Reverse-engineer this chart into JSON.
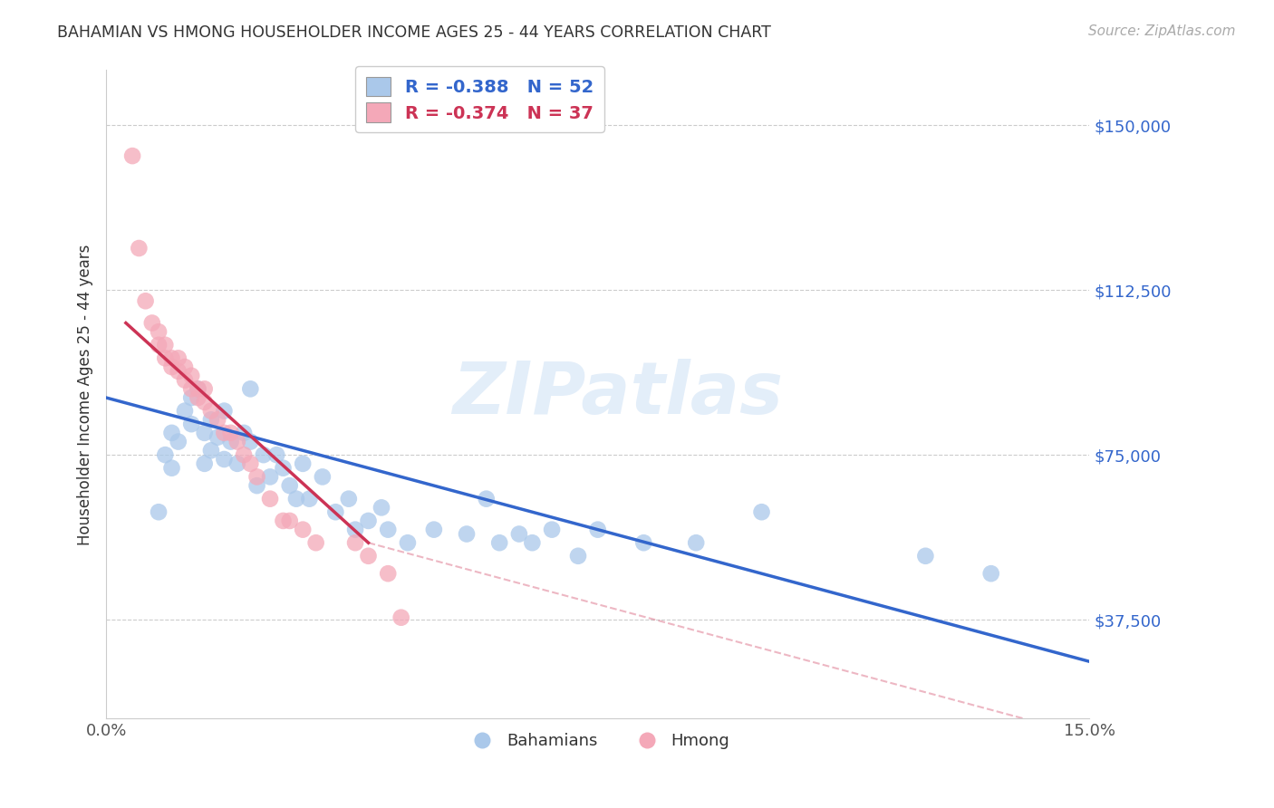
{
  "title": "BAHAMIAN VS HMONG HOUSEHOLDER INCOME AGES 25 - 44 YEARS CORRELATION CHART",
  "source": "Source: ZipAtlas.com",
  "ylabel": "Householder Income Ages 25 - 44 years",
  "xlabel_ticks": [
    "0.0%",
    "15.0%"
  ],
  "ytick_labels": [
    "$37,500",
    "$75,000",
    "$112,500",
    "$150,000"
  ],
  "ytick_values": [
    37500,
    75000,
    112500,
    150000
  ],
  "xlim": [
    0.0,
    0.15
  ],
  "ylim": [
    15000,
    162500
  ],
  "legend_blue_label": "R = -0.388   N = 52",
  "legend_pink_label": "R = -0.374   N = 37",
  "legend_bahamians": "Bahamians",
  "legend_hmong": "Hmong",
  "watermark": "ZIPatlas",
  "blue_color": "#aac8ea",
  "pink_color": "#f4a8b8",
  "blue_line_color": "#3366cc",
  "pink_line_color": "#cc3355",
  "title_color": "#333333",
  "source_color": "#aaaaaa",
  "grid_color": "#cccccc",
  "blue_scatter": {
    "x": [
      0.008,
      0.009,
      0.01,
      0.01,
      0.011,
      0.012,
      0.013,
      0.013,
      0.014,
      0.015,
      0.015,
      0.016,
      0.016,
      0.017,
      0.018,
      0.018,
      0.019,
      0.02,
      0.021,
      0.022,
      0.022,
      0.023,
      0.024,
      0.025,
      0.026,
      0.027,
      0.028,
      0.029,
      0.03,
      0.031,
      0.033,
      0.035,
      0.037,
      0.038,
      0.04,
      0.042,
      0.043,
      0.046,
      0.05,
      0.055,
      0.058,
      0.06,
      0.063,
      0.065,
      0.068,
      0.072,
      0.075,
      0.082,
      0.09,
      0.1,
      0.125,
      0.135
    ],
    "y": [
      62000,
      75000,
      72000,
      80000,
      78000,
      85000,
      88000,
      82000,
      90000,
      73000,
      80000,
      76000,
      83000,
      79000,
      74000,
      85000,
      78000,
      73000,
      80000,
      78000,
      90000,
      68000,
      75000,
      70000,
      75000,
      72000,
      68000,
      65000,
      73000,
      65000,
      70000,
      62000,
      65000,
      58000,
      60000,
      63000,
      58000,
      55000,
      58000,
      57000,
      65000,
      55000,
      57000,
      55000,
      58000,
      52000,
      58000,
      55000,
      55000,
      62000,
      52000,
      48000
    ]
  },
  "pink_scatter": {
    "x": [
      0.004,
      0.005,
      0.006,
      0.007,
      0.008,
      0.008,
      0.009,
      0.009,
      0.01,
      0.01,
      0.011,
      0.011,
      0.012,
      0.012,
      0.013,
      0.013,
      0.014,
      0.014,
      0.015,
      0.015,
      0.016,
      0.017,
      0.018,
      0.019,
      0.02,
      0.021,
      0.022,
      0.023,
      0.025,
      0.027,
      0.028,
      0.03,
      0.032,
      0.038,
      0.04,
      0.043,
      0.045
    ],
    "y": [
      143000,
      122000,
      110000,
      105000,
      100000,
      103000,
      100000,
      97000,
      97000,
      95000,
      94000,
      97000,
      92000,
      95000,
      90000,
      93000,
      88000,
      90000,
      87000,
      90000,
      85000,
      83000,
      80000,
      80000,
      78000,
      75000,
      73000,
      70000,
      65000,
      60000,
      60000,
      58000,
      55000,
      55000,
      52000,
      48000,
      38000
    ]
  },
  "blue_line": {
    "x0": 0.0,
    "x1": 0.15,
    "y0": 88000,
    "y1": 28000
  },
  "pink_line": {
    "x0": 0.003,
    "x1": 0.04,
    "y0": 105000,
    "y1": 55000
  },
  "pink_line_ext": {
    "x0": 0.04,
    "x1": 0.14,
    "y0": 55000,
    "y1": 15000
  }
}
